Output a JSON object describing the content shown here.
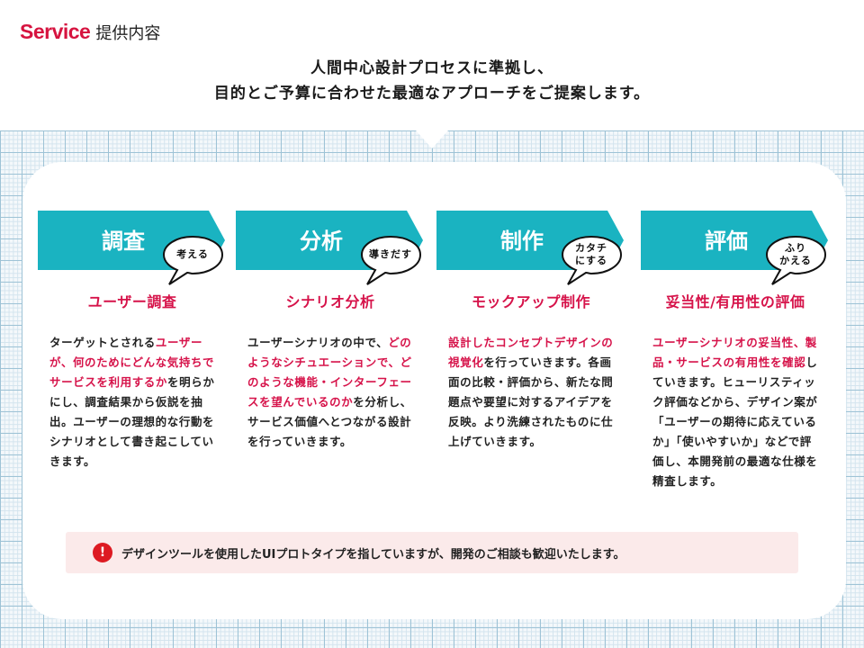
{
  "header": {
    "title_en": "Service",
    "title_ja": "提供内容"
  },
  "lead": {
    "line1": "人間中心設計プロセスに準拠し、",
    "line2": "目的とご予算に合わせた最適なアプローチをご提案します。"
  },
  "colors": {
    "accent": "#1ab3c1",
    "highlight": "#d6134a",
    "brand": "#d6133f",
    "notice_bg": "#fbeaea",
    "alert": "#dd1a22"
  },
  "steps": [
    {
      "title": "調査",
      "bubble": [
        "考える"
      ],
      "subtitle": "ユーザー調査",
      "body": [
        {
          "t": "ターゲットとされる",
          "h": false
        },
        {
          "t": "ユーザーが、何のためにどんな気持ちでサービスを利用するか",
          "h": true
        },
        {
          "t": "を明らかにし、調査結果から仮説を抽出。ユーザーの理想的な行動をシナリオとして書き起こしていきます。",
          "h": false
        }
      ]
    },
    {
      "title": "分析",
      "bubble": [
        "導きだす"
      ],
      "subtitle": "シナリオ分析",
      "body": [
        {
          "t": "ユーザーシナリオの中で、",
          "h": false
        },
        {
          "t": "どのようなシチュエーションで、どのような機能・インターフェースを望んでいるのか",
          "h": true
        },
        {
          "t": "を分析し、サービス価値へとつながる設計を行っていきます。",
          "h": false
        }
      ]
    },
    {
      "title": "制作",
      "bubble": [
        "カタチ",
        "にする"
      ],
      "subtitle": "モックアップ制作",
      "body": [
        {
          "t": "設計したコンセプトデザインの視覚化",
          "h": true
        },
        {
          "t": "を行っていきます。各画面の比較・評価から、新たな問題点や要望に対するアイデアを反映。より洗練されたものに仕上げていきます。",
          "h": false
        }
      ]
    },
    {
      "title": "評価",
      "bubble": [
        "ふり",
        "かえる"
      ],
      "subtitle": "妥当性/有用性の評価",
      "body": [
        {
          "t": "ユーザーシナリオの妥当性、製品・サービスの有用性を確認",
          "h": true
        },
        {
          "t": "していきます。ヒューリスティック評価などから、デザイン案が「ユーザーの期待に応えているか」「使いやすいか」などで評価し、本開発前の最適な仕様を精査します。",
          "h": false
        }
      ]
    }
  ],
  "notice": {
    "icon": "exclamation-icon",
    "text": "デザインツールを使用したUIプロトタイプを指していますが、開発のご相談も歓迎いたします。"
  }
}
